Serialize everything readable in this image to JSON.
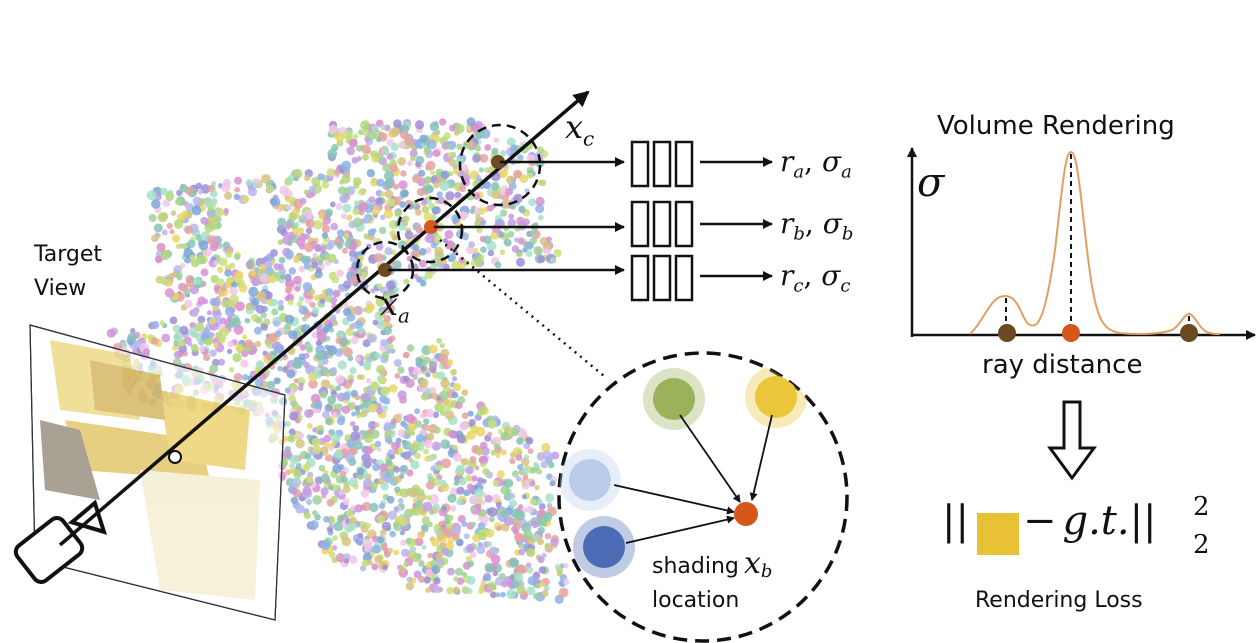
{
  "left": {
    "target_view_label": [
      "Target",
      "View"
    ],
    "ray_point_labels": {
      "c": {
        "base": "x",
        "sub": "c"
      },
      "a": {
        "base": "x",
        "sub": "a"
      }
    },
    "mlp_outputs": [
      {
        "r": "r",
        "r_sub": "a",
        "sigma": "σ",
        "sigma_sub": "a"
      },
      {
        "r": "r",
        "r_sub": "b",
        "sigma": "σ",
        "sigma_sub": "b"
      },
      {
        "r": "r",
        "r_sub": "c",
        "sigma": "σ",
        "sigma_sub": "c"
      }
    ],
    "zoom": {
      "caption_line1": "shading",
      "caption_math_base": "x",
      "caption_math_sub": "b",
      "caption_line2": "location"
    },
    "colors": {
      "point_brown": "#6b4a22",
      "point_orange": "#d5571c",
      "zoom_green": "#9ab35a",
      "zoom_yellow": "#ecc63a",
      "zoom_lightblue": "#b9cdea",
      "zoom_blue": "#4b6bb4"
    }
  },
  "right": {
    "title": "Volume Rendering",
    "y_axis_symbol": "σ",
    "x_axis_label": "ray distance",
    "loss_label": "Rendering Loss",
    "loss_expr": {
      "open": "||",
      "minus": "−",
      "gt": "g.t.",
      "close": "||",
      "sup": "2",
      "sub": "2"
    },
    "colors": {
      "curve": "#e2a060",
      "swatch": "#e8c234",
      "marker_brown": "#6b4a22",
      "marker_orange": "#d5571c"
    }
  }
}
